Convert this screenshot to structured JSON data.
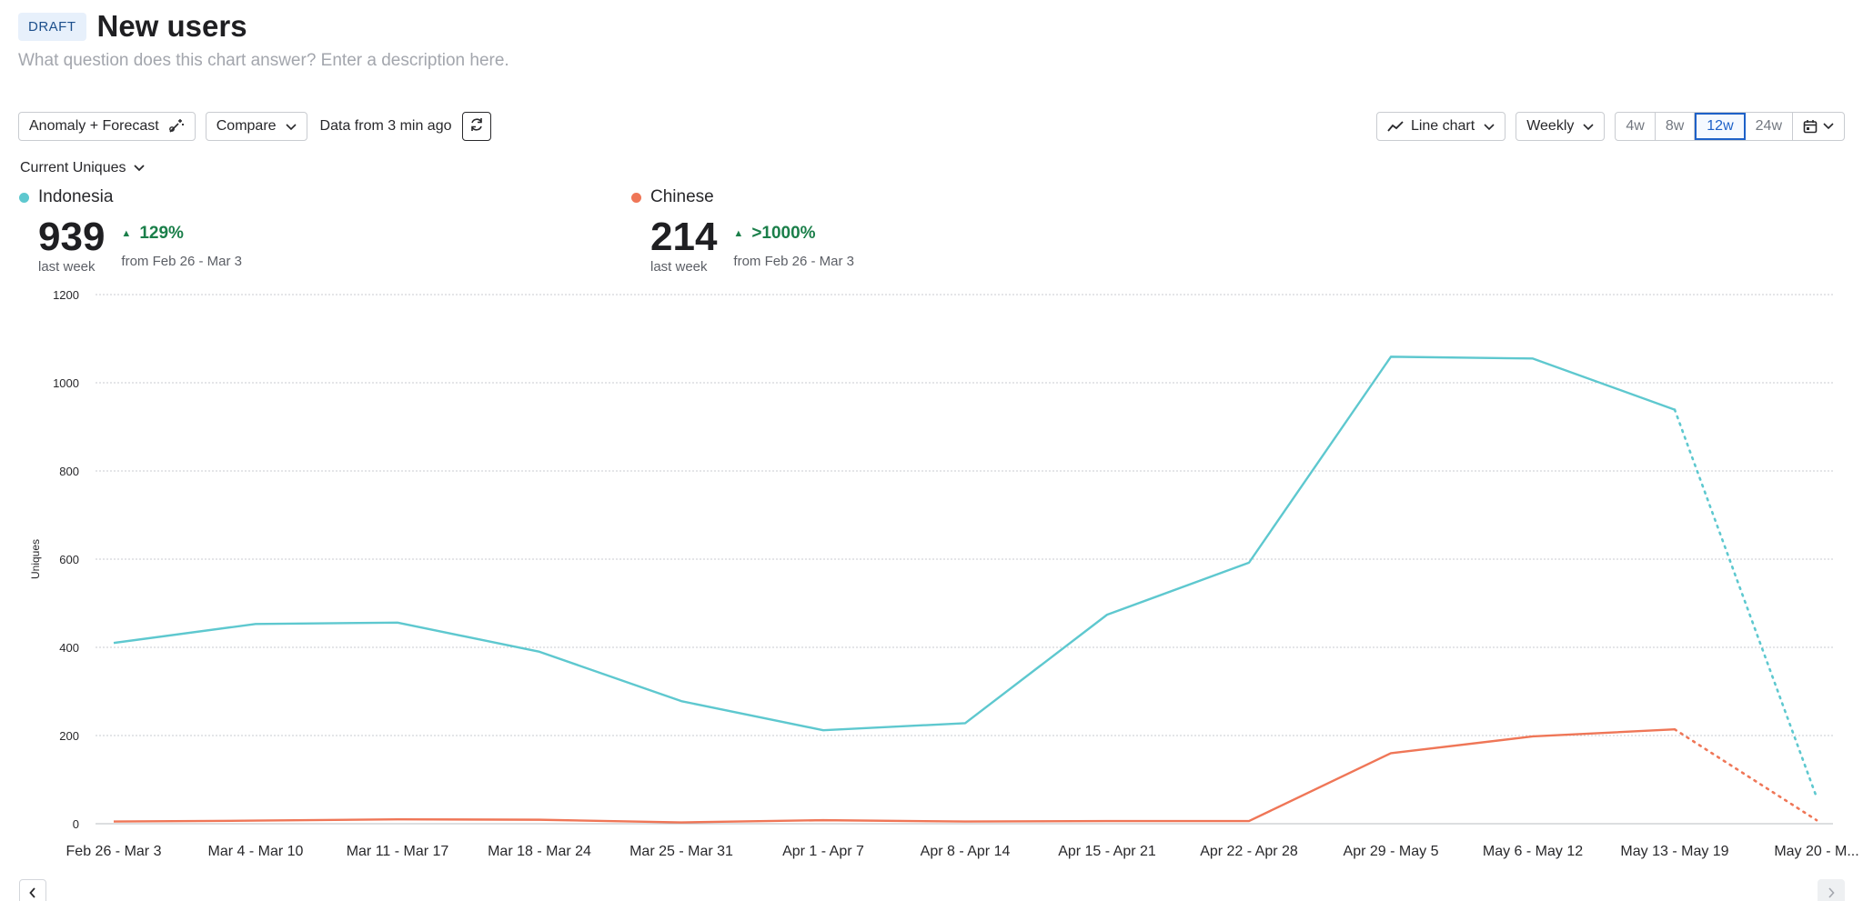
{
  "header": {
    "badge": "DRAFT",
    "title": "New users",
    "description_placeholder": "What question does this chart answer? Enter a description here."
  },
  "toolbar": {
    "anomaly_label": "Anomaly + Forecast",
    "compare_label": "Compare",
    "data_age": "Data from 3 min ago",
    "chart_type_label": "Line chart",
    "interval_label": "Weekly",
    "ranges": [
      "4w",
      "8w",
      "12w",
      "24w"
    ],
    "active_range": "12w"
  },
  "metric_selector": "Current Uniques",
  "legend": {
    "indonesia": {
      "name": "Indonesia",
      "value": "939",
      "period": "last week",
      "change": "129%",
      "compare": "from Feb 26 - Mar 3"
    },
    "chinese": {
      "name": "Chinese",
      "value": "214",
      "period": "last week",
      "change": ">1000%",
      "compare": "from Feb 26 - Mar 3"
    }
  },
  "colors": {
    "indonesia": "#5ec8cf",
    "chinese": "#ef7657",
    "grid": "#c8cbd0",
    "accent": "#1e61c8",
    "positive": "#1b7f4a"
  },
  "chart_data": {
    "type": "line",
    "title": "",
    "xlabel": "",
    "ylabel": "Uniques",
    "ylim": [
      0,
      1200
    ],
    "yticks": [
      0,
      200,
      400,
      600,
      800,
      1000,
      1200
    ],
    "categories": [
      "Feb 26 - Mar 3",
      "Mar 4 - Mar 10",
      "Mar 11 - Mar 17",
      "Mar 18 - Mar 24",
      "Mar 25 - Mar 31",
      "Apr 1 - Apr 7",
      "Apr 8 - Apr 14",
      "Apr 15 - Apr 21",
      "Apr 22 - Apr 28",
      "Apr 29 - May 5",
      "May 6 - May 12",
      "May 13 - May 19",
      "May 20 - M..."
    ],
    "incomplete_from_index": 11,
    "series": [
      {
        "name": "Indonesia",
        "color": "#5ec8cf",
        "values": [
          410,
          453,
          456,
          390,
          278,
          212,
          228,
          474,
          592,
          1059,
          1055,
          939,
          60
        ]
      },
      {
        "name": "Chinese",
        "color": "#ef7657",
        "values": [
          5,
          7,
          10,
          9,
          3,
          8,
          5,
          6,
          6,
          160,
          198,
          214,
          8
        ]
      }
    ]
  }
}
